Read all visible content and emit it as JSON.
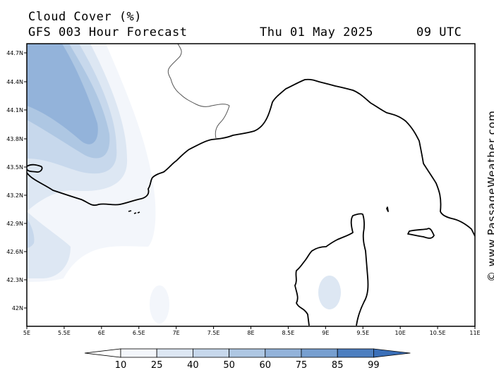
{
  "header": {
    "title": "Cloud Cover (%)",
    "subtitle": "GFS 003 Hour Forecast",
    "date": "Thu 01 May 2025",
    "time": "09 UTC"
  },
  "map": {
    "lat_ticks": [
      "44.7N",
      "44.4N",
      "44.1N",
      "43.8N",
      "43.5N",
      "43.2N",
      "42.9N",
      "42.6N",
      "42.3N",
      "42N"
    ],
    "lon_ticks": [
      "5E",
      "5.5E",
      "6E",
      "6.5E",
      "7E",
      "7.5E",
      "8E",
      "8.5E",
      "9E",
      "9.5E",
      "10E",
      "10.5E",
      "11E"
    ],
    "coast_color": "#000000",
    "border_color": "#555555"
  },
  "legend": {
    "labels": [
      "10",
      "25",
      "40",
      "50",
      "60",
      "75",
      "85",
      "99"
    ],
    "colors": [
      "#ffffff",
      "#f3f6fb",
      "#dde7f3",
      "#c7d8ec",
      "#aec7e3",
      "#93b3da",
      "#779fd0",
      "#4d7fc0",
      "#3a6fb8"
    ]
  },
  "watermark": "© www.PassageWeather.com"
}
